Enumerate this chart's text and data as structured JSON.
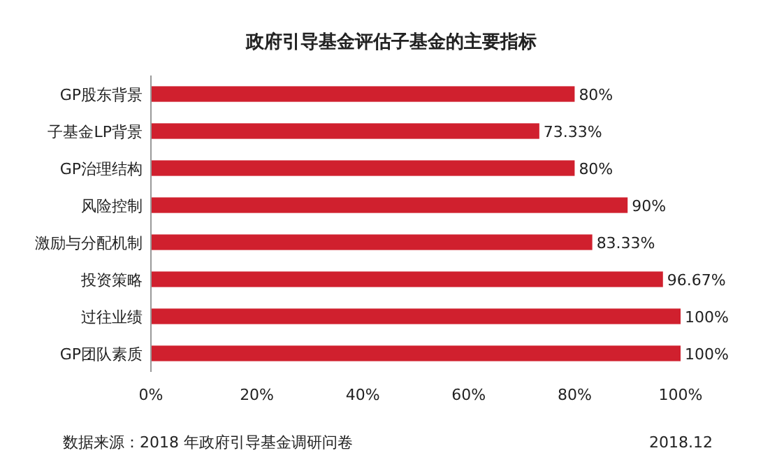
{
  "chart_data": {
    "type": "bar",
    "orientation": "horizontal",
    "title": "政府引导基金评估子基金的主要指标",
    "categories": [
      "GP股东背景",
      "子基金LP背景",
      "GP治理结构",
      "风险控制",
      "激励与分配机制",
      "投资策略",
      "过往业绩",
      "GP团队素质"
    ],
    "values": [
      80,
      73.33,
      80,
      90,
      83.33,
      96.67,
      100,
      100
    ],
    "value_labels": [
      "80%",
      "73.33%",
      "80%",
      "90%",
      "83.33%",
      "96.67%",
      "100%",
      "100%"
    ],
    "color": "#d0202e",
    "xlim": [
      0,
      100
    ],
    "xticks": [
      {
        "value": 0,
        "label": "0%"
      },
      {
        "value": 20,
        "label": "20%"
      },
      {
        "value": 40,
        "label": "40%"
      },
      {
        "value": 60,
        "label": "60%"
      },
      {
        "value": 80,
        "label": "80%"
      },
      {
        "value": 100,
        "label": "100%"
      }
    ],
    "annotations": [
      "数据来源：2018 年政府引导基金调研问卷",
      "2018.12"
    ]
  }
}
